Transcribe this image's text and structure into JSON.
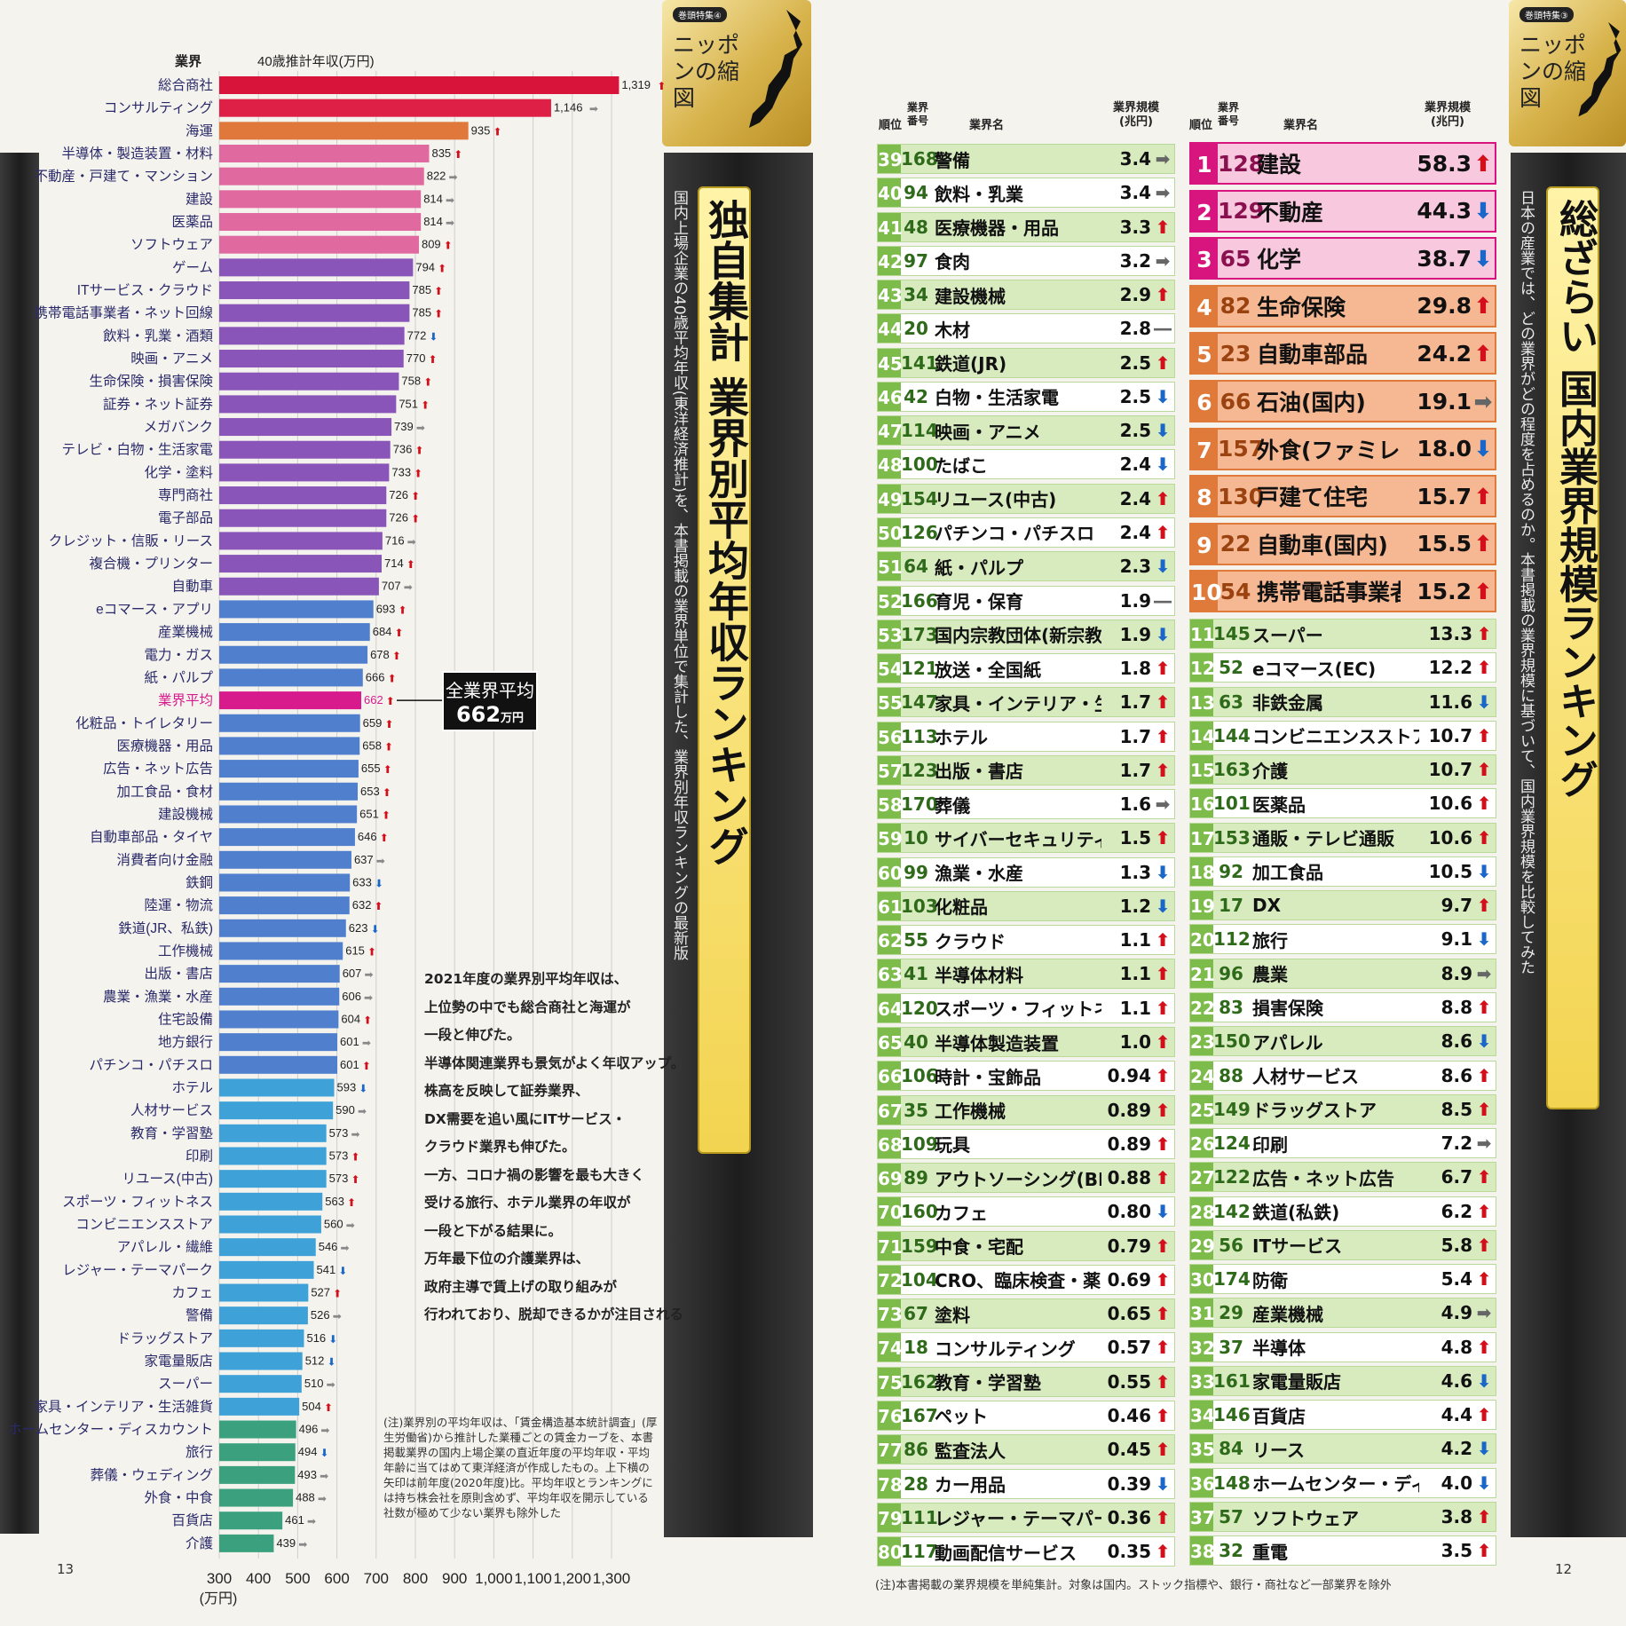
{
  "left": {
    "tab_badge": "巻頭特集④",
    "tab_title": "ニッポンの縮図",
    "title": "独自集計 業界別平均年収ランキング",
    "subtitle": "国内上場企業の40歳平均年収(東洋経済推計)を、本書掲載の業界単位で集計した、業界別年収ランキングの最新版",
    "page_number": "13",
    "avg_label": "全業界平均",
    "avg_value": "662",
    "avg_unit": "万円",
    "commentary": [
      "2021年度の業界別平均年収は、",
      "上位勢の中でも総合商社と海運が",
      "一段と伸びた。",
      "半導体関連業界も景気がよく年収アップ。",
      "株高を反映して証券業界、",
      "DX需要を追い風にITサービス・",
      "クラウド業界も伸びた。",
      "一方、コロナ禍の影響を最も大きく",
      "受ける旅行、ホテル業界の年収が",
      "一段と下がる結果に。",
      "万年最下位の介護業界は、",
      "政府主導で賃上げの取り組みが",
      "行われており、脱却できるかが注目される"
    ],
    "note": "(注)業界別の平均年収は、「賃金構造基本統計調査」(厚生労働省)から推計した業種ごとの賃金カーブを、本書掲載業界の国内上場企業の直近年度の平均年収・平均年齢に当てはめて東洋経済が作成したもの。上下横の矢印は前年度(2020年度)比。平均年収とランキングには持ち株会社を原則含めず、平均年収を開示している社数が極めて少ない業界も除外した"
  },
  "chart_data": {
    "type": "bar",
    "orientation": "horizontal",
    "xlabel": "40歳推計年収(万円)",
    "ylabel": "業界",
    "x_unit": "(万円)",
    "xlim": [
      300,
      1319
    ],
    "x_ticks": [
      "300",
      "400",
      "500",
      "600",
      "700",
      "800",
      "900",
      "1,000",
      "1,100",
      "1,200",
      "1,300"
    ],
    "categories": [
      "総合商社",
      "コンサルティング",
      "海運",
      "半導体・製造装置・材料",
      "不動産・戸建て・マンション",
      "建設",
      "医薬品",
      "ソフトウェア",
      "ゲーム",
      "ITサービス・クラウド",
      "携帯電話事業者・ネット回線",
      "飲料・乳業・酒類",
      "映画・アニメ",
      "生命保険・損害保険",
      "証券・ネット証券",
      "メガバンク",
      "テレビ・白物・生活家電",
      "化学・塗料",
      "専門商社",
      "電子部品",
      "クレジット・信販・リース",
      "複合機・プリンター",
      "自動車",
      "eコマース・アプリ",
      "産業機械",
      "電力・ガス",
      "紙・パルプ",
      "業界平均",
      "化粧品・トイレタリー",
      "医療機器・用品",
      "広告・ネット広告",
      "加工食品・食材",
      "建設機械",
      "自動車部品・タイヤ",
      "消費者向け金融",
      "鉄鋼",
      "陸運・物流",
      "鉄道(JR、私鉄)",
      "工作機械",
      "出版・書店",
      "農業・漁業・水産",
      "住宅設備",
      "地方銀行",
      "パチンコ・パチスロ",
      "ホテル",
      "人材サービス",
      "教育・学習塾",
      "印刷",
      "リユース(中古)",
      "スポーツ・フィットネス",
      "コンビニエンスストア",
      "アパレル・繊維",
      "レジャー・テーマパーク",
      "カフェ",
      "警備",
      "ドラッグストア",
      "家電量販店",
      "スーパー",
      "家具・インテリア・生活雑貨",
      "ホームセンター・ディスカウント",
      "旅行",
      "葬儀・ウェディング",
      "外食・中食",
      "百貨店",
      "介護"
    ],
    "values": [
      1319,
      1146,
      935,
      835,
      822,
      814,
      814,
      809,
      794,
      785,
      785,
      772,
      770,
      758,
      751,
      739,
      736,
      733,
      726,
      726,
      716,
      714,
      707,
      693,
      684,
      678,
      666,
      662,
      659,
      658,
      655,
      653,
      651,
      646,
      637,
      633,
      632,
      623,
      615,
      607,
      606,
      604,
      601,
      601,
      593,
      590,
      573,
      573,
      573,
      563,
      560,
      546,
      541,
      527,
      526,
      516,
      512,
      510,
      504,
      496,
      494,
      493,
      488,
      461,
      439
    ],
    "value_labels": [
      "1,319",
      "1,146",
      "935",
      "835",
      "822",
      "814",
      "814",
      "809",
      "794",
      "785",
      "785",
      "772",
      "770",
      "758",
      "751",
      "739",
      "736",
      "733",
      "726",
      "726",
      "716",
      "714",
      "707",
      "693",
      "684",
      "678",
      "666",
      "662",
      "659",
      "658",
      "655",
      "653",
      "651",
      "646",
      "637",
      "633",
      "632",
      "623",
      "615",
      "607",
      "606",
      "604",
      "601",
      "601",
      "593",
      "590",
      "573",
      "573",
      "573",
      "563",
      "560",
      "546",
      "541",
      "527",
      "526",
      "516",
      "512",
      "510",
      "504",
      "496",
      "494",
      "493",
      "488",
      "461",
      "439"
    ],
    "trends": [
      "up",
      "flat",
      "up",
      "up",
      "flat",
      "flat",
      "flat",
      "up",
      "up",
      "up",
      "up",
      "down",
      "up",
      "up",
      "up",
      "flat",
      "up",
      "up",
      "up",
      "up",
      "flat",
      "up",
      "flat",
      "up",
      "up",
      "up",
      "up",
      "up",
      "up",
      "up",
      "up",
      "up",
      "up",
      "up",
      "flat",
      "down",
      "up",
      "down",
      "up",
      "flat",
      "flat",
      "up",
      "flat",
      "up",
      "down",
      "flat",
      "flat",
      "up",
      "up",
      "up",
      "flat",
      "flat",
      "down",
      "up",
      "flat",
      "down",
      "down",
      "flat",
      "up",
      "flat",
      "down",
      "flat",
      "flat",
      "flat",
      "flat"
    ],
    "colors": {
      "top1": "#d8143a",
      "top2": "#de1f46",
      "orange": "#e0783c",
      "pink": "#e06aa0",
      "purple": "#8a55b8",
      "blue": "#4f7fcd",
      "avg": "#d81b8c",
      "cyan": "#3ea2d8",
      "teal": "#3aa07e"
    }
  },
  "right": {
    "tab_badge": "巻頭特集③",
    "tab_title": "ニッポンの縮図",
    "title": "総ざらい 国内業界規模ランキング",
    "subtitle": "日本の産業では、どの業界がどの程度を占めるのか。本書掲載の業界規模に基づいて、国内業界規模を比較してみた",
    "page_number": "12",
    "headers": {
      "rank": "順位",
      "number": "業界番号",
      "name": "業界名",
      "size": "業界規模(兆円)"
    },
    "footer_note": "(注)本書掲載の業界規模を単純集計。対象は国内。ストック指標や、銀行・商社など一部業界を除外",
    "top10": [
      {
        "rank": "1",
        "no": "128",
        "name": "建設",
        "size": "58.3",
        "trend": "up"
      },
      {
        "rank": "2",
        "no": "129",
        "name": "不動産",
        "size": "44.3",
        "trend": "down"
      },
      {
        "rank": "3",
        "no": "65",
        "name": "化学",
        "size": "38.7",
        "trend": "down"
      },
      {
        "rank": "4",
        "no": "82",
        "name": "生命保険",
        "size": "29.8",
        "trend": "up"
      },
      {
        "rank": "5",
        "no": "23",
        "name": "自動車部品",
        "size": "24.2",
        "trend": "up"
      },
      {
        "rank": "6",
        "no": "66",
        "name": "石油(国内)",
        "size": "19.1",
        "trend": "flat"
      },
      {
        "rank": "7",
        "no": "157",
        "name": "外食(ファミレス、すし、居酒屋)",
        "size": "18.0",
        "trend": "down"
      },
      {
        "rank": "8",
        "no": "130",
        "name": "戸建て住宅",
        "size": "15.7",
        "trend": "up"
      },
      {
        "rank": "9",
        "no": "22",
        "name": "自動車(国内)",
        "size": "15.5",
        "trend": "up"
      },
      {
        "rank": "10",
        "no": "54",
        "name": "携帯電話事業者",
        "size": "15.2",
        "trend": "up"
      }
    ],
    "ranks_11_38": [
      {
        "rank": "11",
        "no": "145",
        "name": "スーパー",
        "size": "13.3",
        "trend": "up"
      },
      {
        "rank": "12",
        "no": "52",
        "name": "eコマース(EC)",
        "size": "12.2",
        "trend": "up"
      },
      {
        "rank": "13",
        "no": "63",
        "name": "非鉄金属",
        "size": "11.6",
        "trend": "down"
      },
      {
        "rank": "14",
        "no": "144",
        "name": "コンビニエンスストア",
        "size": "10.7",
        "trend": "up"
      },
      {
        "rank": "15",
        "no": "163",
        "name": "介護",
        "size": "10.7",
        "trend": "up"
      },
      {
        "rank": "16",
        "no": "101",
        "name": "医薬品",
        "size": "10.6",
        "trend": "up"
      },
      {
        "rank": "17",
        "no": "153",
        "name": "通販・テレビ通販",
        "size": "10.6",
        "trend": "up"
      },
      {
        "rank": "18",
        "no": "92",
        "name": "加工食品",
        "size": "10.5",
        "trend": "down"
      },
      {
        "rank": "19",
        "no": "17",
        "name": "DX",
        "size": "9.7",
        "trend": "up"
      },
      {
        "rank": "20",
        "no": "112",
        "name": "旅行",
        "size": "9.1",
        "trend": "down"
      },
      {
        "rank": "21",
        "no": "96",
        "name": "農業",
        "size": "8.9",
        "trend": "flat"
      },
      {
        "rank": "22",
        "no": "83",
        "name": "損害保険",
        "size": "8.8",
        "trend": "up"
      },
      {
        "rank": "23",
        "no": "150",
        "name": "アパレル",
        "size": "8.6",
        "trend": "down"
      },
      {
        "rank": "24",
        "no": "88",
        "name": "人材サービス",
        "size": "8.6",
        "trend": "up"
      },
      {
        "rank": "25",
        "no": "149",
        "name": "ドラッグストア",
        "size": "8.5",
        "trend": "up"
      },
      {
        "rank": "26",
        "no": "124",
        "name": "印刷",
        "size": "7.2",
        "trend": "flat"
      },
      {
        "rank": "27",
        "no": "122",
        "name": "広告・ネット広告",
        "size": "6.7",
        "trend": "up"
      },
      {
        "rank": "28",
        "no": "142",
        "name": "鉄道(私鉄)",
        "size": "6.2",
        "trend": "up"
      },
      {
        "rank": "29",
        "no": "56",
        "name": "ITサービス",
        "size": "5.8",
        "trend": "up"
      },
      {
        "rank": "30",
        "no": "174",
        "name": "防衛",
        "size": "5.4",
        "trend": "up"
      },
      {
        "rank": "31",
        "no": "29",
        "name": "産業機械",
        "size": "4.9",
        "trend": "flat"
      },
      {
        "rank": "32",
        "no": "37",
        "name": "半導体",
        "size": "4.8",
        "trend": "up"
      },
      {
        "rank": "33",
        "no": "161",
        "name": "家電量販店",
        "size": "4.6",
        "trend": "down"
      },
      {
        "rank": "34",
        "no": "146",
        "name": "百貨店",
        "size": "4.4",
        "trend": "up"
      },
      {
        "rank": "35",
        "no": "84",
        "name": "リース",
        "size": "4.2",
        "trend": "down"
      },
      {
        "rank": "36",
        "no": "148",
        "name": "ホームセンター・ディスカウントストア",
        "size": "4.0",
        "trend": "down"
      },
      {
        "rank": "37",
        "no": "57",
        "name": "ソフトウェア",
        "size": "3.8",
        "trend": "up"
      },
      {
        "rank": "38",
        "no": "32",
        "name": "重電",
        "size": "3.5",
        "trend": "up"
      }
    ],
    "ranks_39_80": [
      {
        "rank": "39",
        "no": "168",
        "name": "警備",
        "size": "3.4",
        "trend": "flat"
      },
      {
        "rank": "40",
        "no": "94",
        "name": "飲料・乳業",
        "size": "3.4",
        "trend": "flat"
      },
      {
        "rank": "41",
        "no": "48",
        "name": "医療機器・用品",
        "size": "3.3",
        "trend": "up"
      },
      {
        "rank": "42",
        "no": "97",
        "name": "食肉",
        "size": "3.2",
        "trend": "flat"
      },
      {
        "rank": "43",
        "no": "34",
        "name": "建設機械",
        "size": "2.9",
        "trend": "up"
      },
      {
        "rank": "44",
        "no": "20",
        "name": "木材",
        "size": "2.8",
        "trend": "none"
      },
      {
        "rank": "45",
        "no": "141",
        "name": "鉄道(JR)",
        "size": "2.5",
        "trend": "up"
      },
      {
        "rank": "46",
        "no": "42",
        "name": "白物・生活家電",
        "size": "2.5",
        "trend": "down"
      },
      {
        "rank": "47",
        "no": "114",
        "name": "映画・アニメ",
        "size": "2.5",
        "trend": "down"
      },
      {
        "rank": "48",
        "no": "100",
        "name": "たばこ",
        "size": "2.4",
        "trend": "down"
      },
      {
        "rank": "49",
        "no": "154",
        "name": "リユース(中古)",
        "size": "2.4",
        "trend": "up"
      },
      {
        "rank": "50",
        "no": "126",
        "name": "パチンコ・パチスロ",
        "size": "2.4",
        "trend": "up"
      },
      {
        "rank": "51",
        "no": "64",
        "name": "紙・パルプ",
        "size": "2.3",
        "trend": "down"
      },
      {
        "rank": "52",
        "no": "166",
        "name": "育児・保育",
        "size": "1.9",
        "trend": "none"
      },
      {
        "rank": "53",
        "no": "173",
        "name": "国内宗教団体(新宗教)",
        "size": "1.9",
        "trend": "down"
      },
      {
        "rank": "54",
        "no": "121",
        "name": "放送・全国紙",
        "size": "1.8",
        "trend": "up"
      },
      {
        "rank": "55",
        "no": "147",
        "name": "家具・インテリア・生活雑貨",
        "size": "1.7",
        "trend": "up"
      },
      {
        "rank": "56",
        "no": "113",
        "name": "ホテル",
        "size": "1.7",
        "trend": "up"
      },
      {
        "rank": "57",
        "no": "123",
        "name": "出版・書店",
        "size": "1.7",
        "trend": "up"
      },
      {
        "rank": "58",
        "no": "170",
        "name": "葬儀",
        "size": "1.6",
        "trend": "flat"
      },
      {
        "rank": "59",
        "no": "10",
        "name": "サイバーセキュリティー",
        "size": "1.5",
        "trend": "up"
      },
      {
        "rank": "60",
        "no": "99",
        "name": "漁業・水産",
        "size": "1.3",
        "trend": "down"
      },
      {
        "rank": "61",
        "no": "103",
        "name": "化粧品",
        "size": "1.2",
        "trend": "down"
      },
      {
        "rank": "62",
        "no": "55",
        "name": "クラウド",
        "size": "1.1",
        "trend": "up"
      },
      {
        "rank": "63",
        "no": "41",
        "name": "半導体材料",
        "size": "1.1",
        "trend": "up"
      },
      {
        "rank": "64",
        "no": "120",
        "name": "スポーツ・フィットネス",
        "size": "1.1",
        "trend": "up"
      },
      {
        "rank": "65",
        "no": "40",
        "name": "半導体製造装置",
        "size": "1.0",
        "trend": "up"
      },
      {
        "rank": "66",
        "no": "106",
        "name": "時計・宝飾品",
        "size": "0.94",
        "trend": "up"
      },
      {
        "rank": "67",
        "no": "35",
        "name": "工作機械",
        "size": "0.89",
        "trend": "up"
      },
      {
        "rank": "68",
        "no": "109",
        "name": "玩具",
        "size": "0.89",
        "trend": "up"
      },
      {
        "rank": "69",
        "no": "89",
        "name": "アウトソーシング(BPO)",
        "size": "0.88",
        "trend": "up"
      },
      {
        "rank": "70",
        "no": "160",
        "name": "カフェ",
        "size": "0.80",
        "trend": "down"
      },
      {
        "rank": "71",
        "no": "159",
        "name": "中食・宅配",
        "size": "0.79",
        "trend": "up"
      },
      {
        "rank": "72",
        "no": "104",
        "name": "CRO、臨床検査・薬",
        "size": "0.69",
        "trend": "up"
      },
      {
        "rank": "73",
        "no": "67",
        "name": "塗料",
        "size": "0.65",
        "trend": "up"
      },
      {
        "rank": "74",
        "no": "18",
        "name": "コンサルティング",
        "size": "0.57",
        "trend": "up"
      },
      {
        "rank": "75",
        "no": "162",
        "name": "教育・学習塾",
        "size": "0.55",
        "trend": "up"
      },
      {
        "rank": "76",
        "no": "167",
        "name": "ペット",
        "size": "0.46",
        "trend": "up"
      },
      {
        "rank": "77",
        "no": "86",
        "name": "監査法人",
        "size": "0.45",
        "trend": "up"
      },
      {
        "rank": "78",
        "no": "28",
        "name": "カー用品",
        "size": "0.39",
        "trend": "down"
      },
      {
        "rank": "79",
        "no": "111",
        "name": "レジャー・テーマパーク",
        "size": "0.36",
        "trend": "up"
      },
      {
        "rank": "80",
        "no": "117",
        "name": "動画配信サービス",
        "size": "0.35",
        "trend": "up"
      }
    ],
    "trend_glyphs": {
      "up": "⬆",
      "down": "⬇",
      "flat": "➡",
      "none": "―"
    }
  }
}
